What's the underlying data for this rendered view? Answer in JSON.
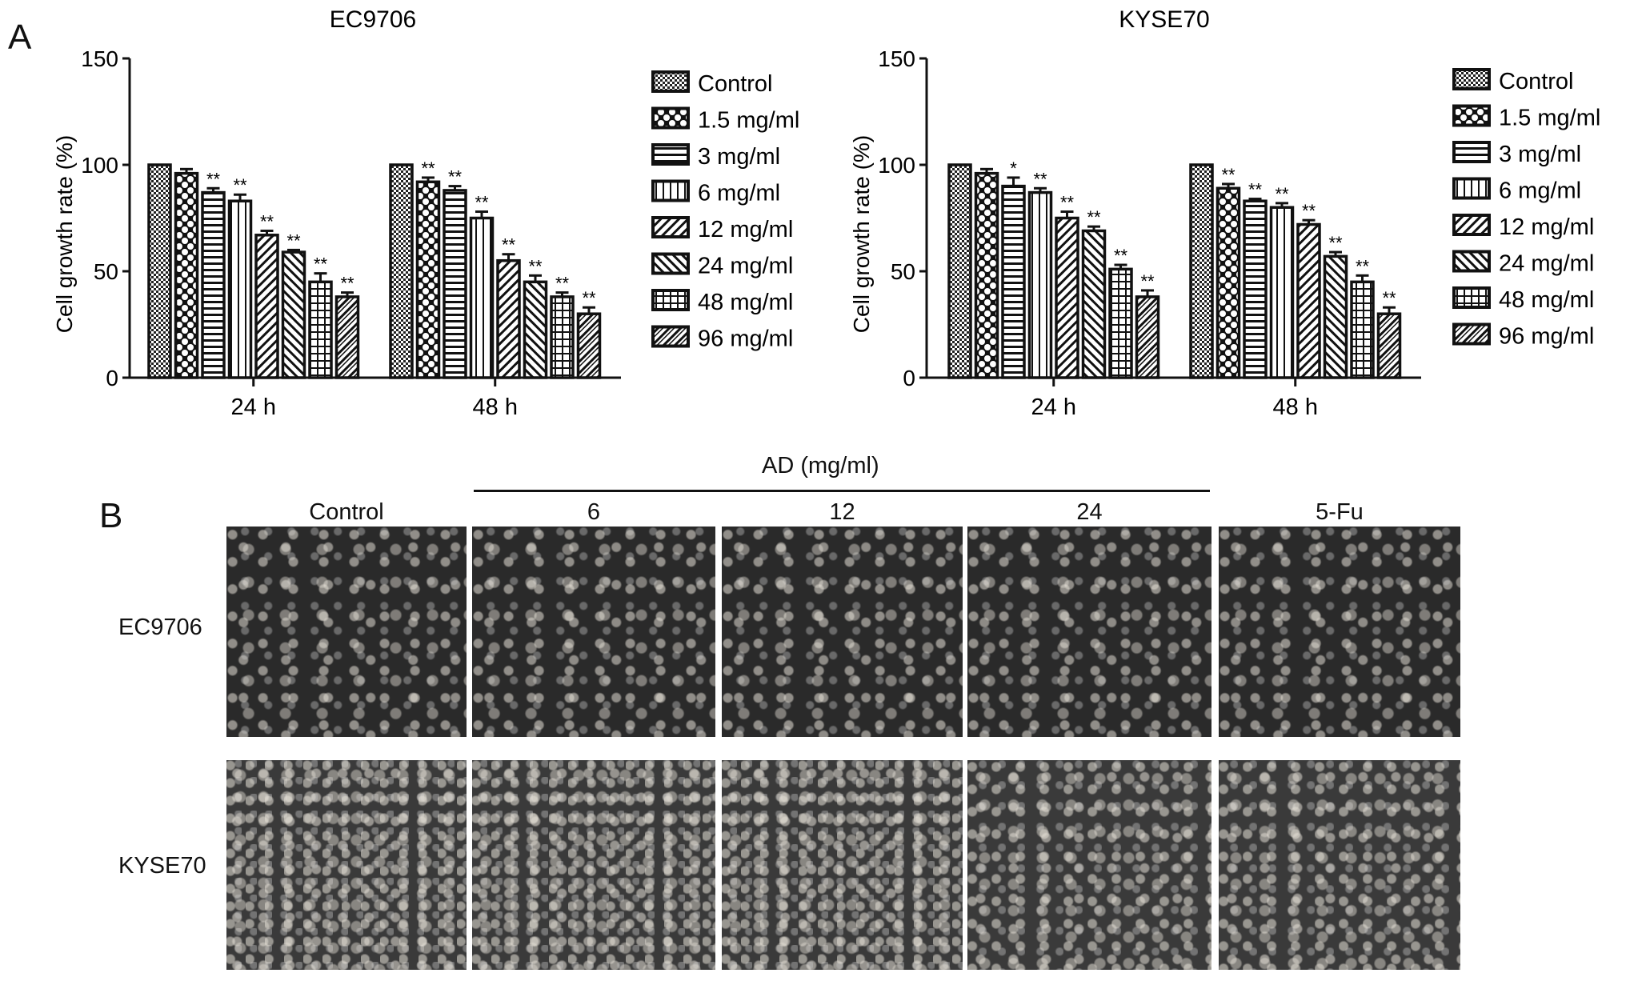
{
  "panel_a_label": "A",
  "panel_b_label": "B",
  "chart_data": [
    {
      "type": "bar",
      "title": "EC9706",
      "xlabel": "",
      "ylabel": "Cell growth rate (%)",
      "ylim": [
        0,
        150
      ],
      "yticks": [
        "0",
        "50",
        "100",
        "150"
      ],
      "categories": [
        "24 h",
        "48 h"
      ],
      "legend_position": "right",
      "series": [
        {
          "name": "Control",
          "values": [
            100,
            100
          ],
          "errors": [
            0,
            0
          ],
          "sig": [
            "",
            ""
          ]
        },
        {
          "name": "1.5 mg/ml",
          "values": [
            96,
            92
          ],
          "errors": [
            2,
            2
          ],
          "sig": [
            "",
            "**"
          ]
        },
        {
          "name": "3 mg/ml",
          "values": [
            87,
            88
          ],
          "errors": [
            2,
            2
          ],
          "sig": [
            "**",
            "**"
          ]
        },
        {
          "name": "6 mg/ml",
          "values": [
            83,
            75
          ],
          "errors": [
            3,
            3
          ],
          "sig": [
            "**",
            "**"
          ]
        },
        {
          "name": "12 mg/ml",
          "values": [
            67,
            55
          ],
          "errors": [
            2,
            3
          ],
          "sig": [
            "**",
            "**"
          ]
        },
        {
          "name": "24 mg/ml",
          "values": [
            59,
            45
          ],
          "errors": [
            1,
            3
          ],
          "sig": [
            "**",
            "**"
          ]
        },
        {
          "name": "48 mg/ml",
          "values": [
            45,
            38
          ],
          "errors": [
            4,
            2
          ],
          "sig": [
            "**",
            "**"
          ]
        },
        {
          "name": "96 mg/ml",
          "values": [
            38,
            30
          ],
          "errors": [
            2,
            3
          ],
          "sig": [
            "**",
            "**"
          ]
        }
      ]
    },
    {
      "type": "bar",
      "title": "KYSE70",
      "xlabel": "",
      "ylabel": "Cell growth rate (%)",
      "ylim": [
        0,
        150
      ],
      "yticks": [
        "0",
        "50",
        "100",
        "150"
      ],
      "categories": [
        "24 h",
        "48 h"
      ],
      "legend_position": "right",
      "series": [
        {
          "name": "Control",
          "values": [
            100,
            100
          ],
          "errors": [
            0,
            0
          ],
          "sig": [
            "",
            ""
          ]
        },
        {
          "name": "1.5 mg/ml",
          "values": [
            96,
            89
          ],
          "errors": [
            2,
            2
          ],
          "sig": [
            "",
            "**"
          ]
        },
        {
          "name": "3 mg/ml",
          "values": [
            90,
            83
          ],
          "errors": [
            4,
            1
          ],
          "sig": [
            "*",
            "**"
          ]
        },
        {
          "name": "6 mg/ml",
          "values": [
            87,
            80
          ],
          "errors": [
            2,
            2
          ],
          "sig": [
            "**",
            "**"
          ]
        },
        {
          "name": "12 mg/ml",
          "values": [
            75,
            72
          ],
          "errors": [
            3,
            2
          ],
          "sig": [
            "**",
            "**"
          ]
        },
        {
          "name": "24 mg/ml",
          "values": [
            69,
            57
          ],
          "errors": [
            2,
            2
          ],
          "sig": [
            "**",
            "**"
          ]
        },
        {
          "name": "48 mg/ml",
          "values": [
            51,
            45
          ],
          "errors": [
            2,
            3
          ],
          "sig": [
            "**",
            "**"
          ]
        },
        {
          "name": "96 mg/ml",
          "values": [
            38,
            30
          ],
          "errors": [
            3,
            3
          ],
          "sig": [
            "**",
            "**"
          ]
        }
      ]
    }
  ],
  "panel_b": {
    "group_label": "AD (mg/ml)",
    "columns": [
      "Control",
      "6",
      "12",
      "24",
      "5-Fu"
    ],
    "rows": [
      "EC9706",
      "KYSE70"
    ]
  }
}
